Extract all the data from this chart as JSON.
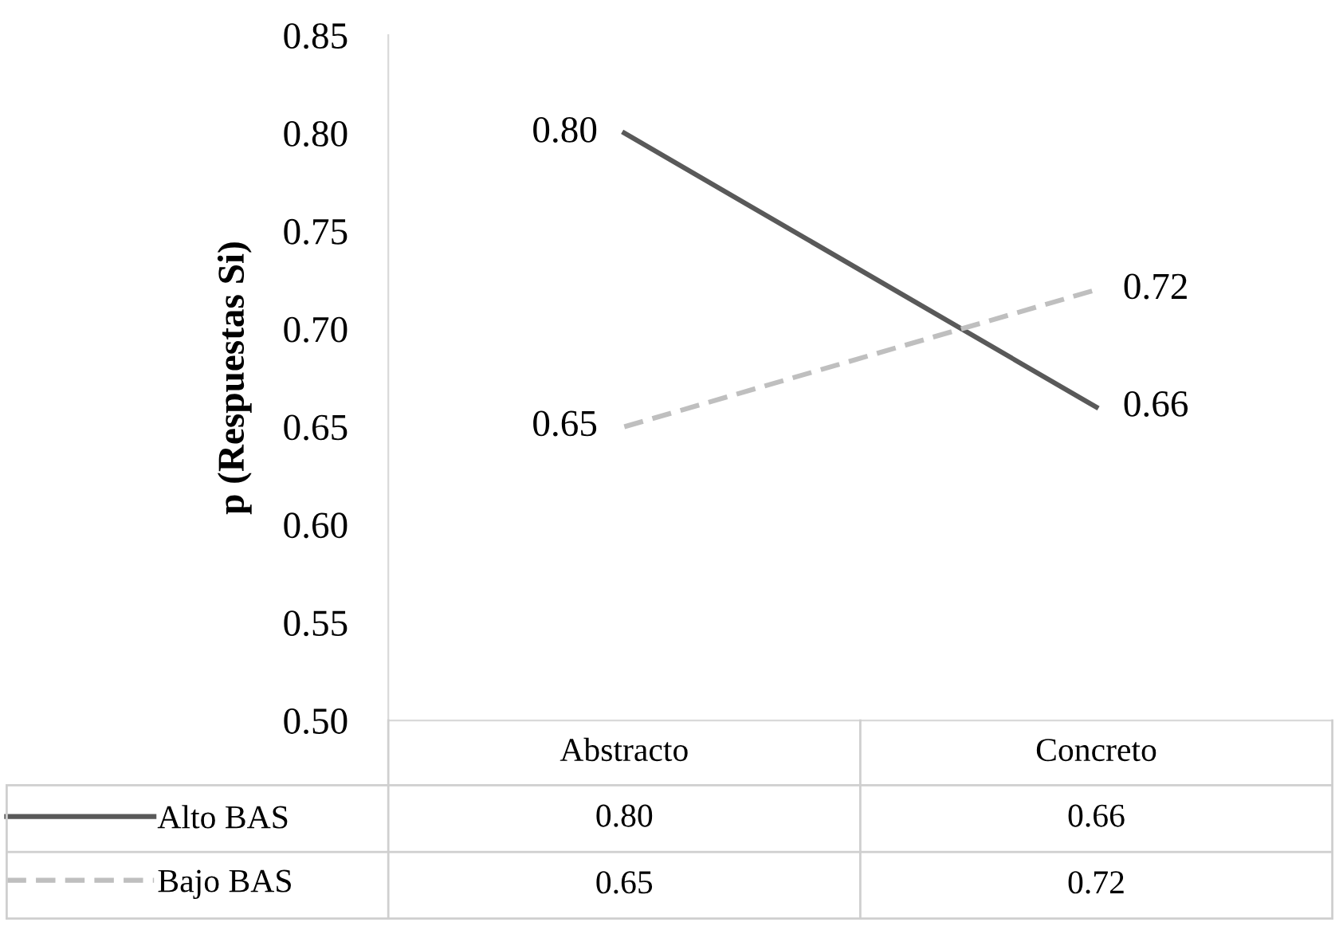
{
  "chart_data": {
    "type": "line",
    "ylabel": "p (Respuestas Si)",
    "categories": [
      "Abstracto",
      "Concreto"
    ],
    "series": [
      {
        "name": "Alto BAS",
        "color": "#595959",
        "line_style": "solid",
        "values": [
          0.8,
          0.66
        ],
        "value_labels": [
          "0.80",
          "0.66"
        ]
      },
      {
        "name": "Bajo BAS",
        "color": "#bfbfbf",
        "line_style": "dashed",
        "values": [
          0.65,
          0.72
        ],
        "value_labels": [
          "0.65",
          "0.72"
        ]
      }
    ],
    "ylim": [
      0.5,
      0.85
    ],
    "yticks": [
      {
        "value": 0.5,
        "label": "0.50"
      },
      {
        "value": 0.55,
        "label": "0.55"
      },
      {
        "value": 0.6,
        "label": "0.60"
      },
      {
        "value": 0.65,
        "label": "0.65"
      },
      {
        "value": 0.7,
        "label": "0.70"
      },
      {
        "value": 0.75,
        "label": "0.75"
      },
      {
        "value": 0.8,
        "label": "0.80"
      },
      {
        "value": 0.85,
        "label": "0.85"
      }
    ],
    "grid": false,
    "legend": "bottom",
    "marker": "none"
  }
}
